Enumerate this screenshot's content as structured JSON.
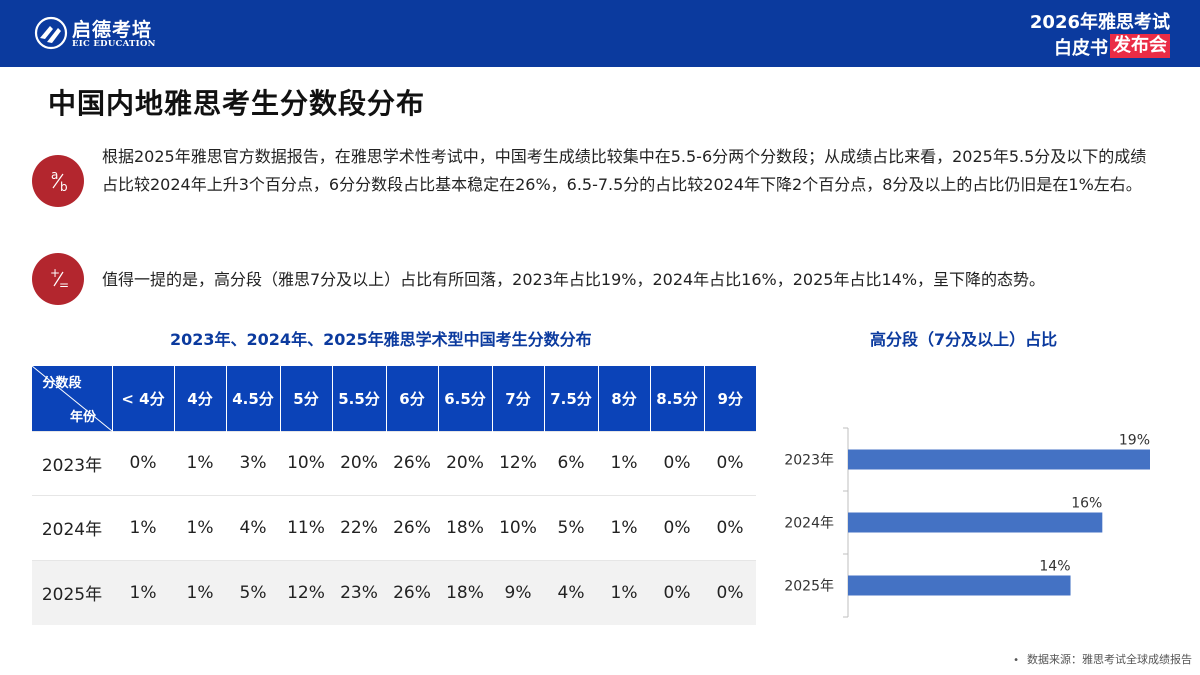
{
  "brand": {
    "name": "启德考培",
    "sub": "EIC EDUCATION",
    "badge_line1": "2026年雅思考试",
    "badge_line2a": "白皮书",
    "badge_line2b": "发布会"
  },
  "page_title": "中国内地雅思考生分数段分布",
  "paragraphs": [
    {
      "icon": "fraction-icon",
      "text": "根据2025年雅思官方数据报告，在雅思学术性考试中，中国考生成绩比较集中在5.5-6分两个分数段；从成绩占比来看，2025年5.5分及以下的成绩占比较2024年上升3个百分点，6分分数段占比基本稳定在26%，6.5-7.5分的占比较2024年下降2个百分点，8分及以上的占比仍旧是在1%左右。"
    },
    {
      "icon": "plus-minus-icon",
      "text": "值得一提的是，高分段（雅思7分及以上）占比有所回落，2023年占比19%，2024年占比16%，2025年占比14%，呈下降的态势。"
    }
  ],
  "table_title": "2023年、2024年、2025年雅思学术型中国考生分数分布",
  "chart_title": "高分段（7分及以上）占比",
  "table": {
    "corner_top": "分数段",
    "corner_bottom": "年份",
    "headers": [
      "< 4分",
      "4分",
      "4.5分",
      "5分",
      "5.5分",
      "6分",
      "6.5分",
      "7分",
      "7.5分",
      "8分",
      "8.5分",
      "9分"
    ],
    "rows": [
      {
        "year": "2023年",
        "values": [
          "0%",
          "1%",
          "3%",
          "10%",
          "20%",
          "26%",
          "20%",
          "12%",
          "6%",
          "1%",
          "0%",
          "0%"
        ]
      },
      {
        "year": "2024年",
        "values": [
          "1%",
          "1%",
          "4%",
          "11%",
          "22%",
          "26%",
          "18%",
          "10%",
          "5%",
          "1%",
          "0%",
          "0%"
        ]
      },
      {
        "year": "2025年",
        "values": [
          "1%",
          "1%",
          "5%",
          "12%",
          "23%",
          "26%",
          "18%",
          "9%",
          "4%",
          "1%",
          "0%",
          "0%"
        ]
      }
    ]
  },
  "chart_data": {
    "type": "bar",
    "orientation": "horizontal",
    "categories": [
      "2023年",
      "2024年",
      "2025年"
    ],
    "values": [
      19,
      16,
      14
    ],
    "labels": [
      "19%",
      "16%",
      "14%"
    ],
    "title": "高分段（7分及以上）占比",
    "xlim": [
      0,
      19
    ],
    "bar_color": "#4472c4",
    "grid": false
  },
  "source": "数据来源：雅思考试全球成绩报告",
  "colors": {
    "header_bg": "#0b3a9e",
    "table_header": "#0b43b8",
    "accent_red": "#b3262e",
    "badge_red": "#ea2c45",
    "bar": "#4472c4"
  }
}
